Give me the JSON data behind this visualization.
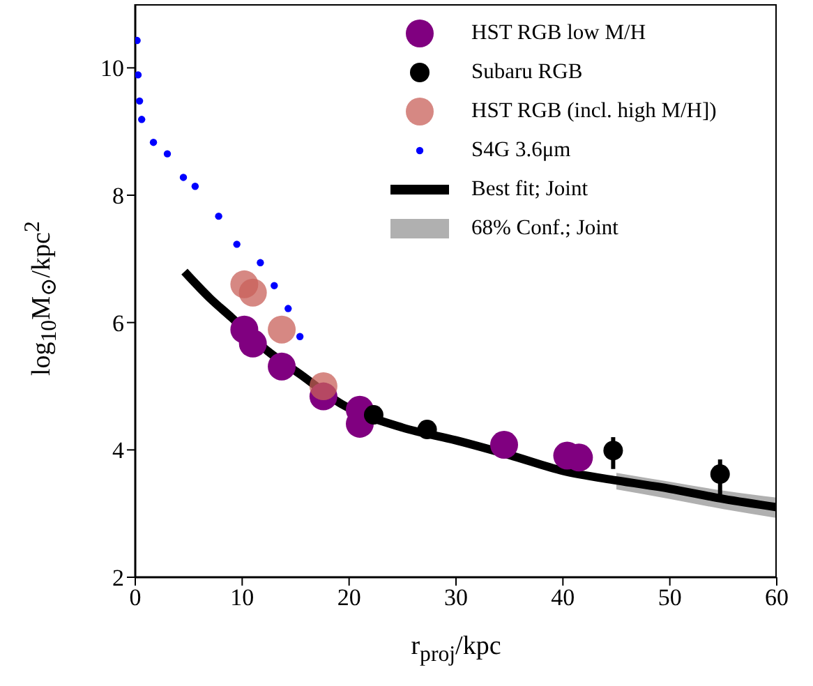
{
  "chart_data": {
    "type": "scatter",
    "xlabel": "r$_{proj}$/kpc",
    "ylabel": "log$_{10}$M$_{⊙}$/kpc$^{2}$",
    "xlim": [
      0,
      60
    ],
    "ylim": [
      2,
      11
    ],
    "xticks": [
      0,
      10,
      20,
      30,
      40,
      50,
      60
    ],
    "yticks": [
      2,
      4,
      6,
      8,
      10
    ],
    "legend": "top right",
    "marker": "circle",
    "series": [
      {
        "name": "HST RGB low M/H",
        "color": "#800080",
        "x": [
          10.2,
          11.0,
          13.7,
          17.6,
          21.0,
          21.0,
          34.5,
          40.4,
          41.5
        ],
        "values": [
          5.89,
          5.67,
          5.31,
          4.84,
          4.63,
          4.41,
          4.08,
          3.91,
          3.88
        ]
      },
      {
        "name": "Subaru RGB",
        "color": "#000000",
        "x": [
          22.3,
          27.3,
          44.7,
          54.7
        ],
        "values": [
          4.55,
          4.32,
          3.99,
          3.62
        ],
        "errors": [
          null,
          null,
          [
            3.7,
            4.2
          ],
          [
            3.3,
            3.85
          ]
        ]
      },
      {
        "name": "HST RGB (incl. high M/H])",
        "color": "#c8605a",
        "x": [
          10.2,
          11.0,
          13.7,
          17.6
        ],
        "values": [
          6.6,
          6.47,
          5.89,
          5.0
        ]
      },
      {
        "name": "S4G 3.6μm",
        "color": "#0000ff",
        "x": [
          0.17,
          0.26,
          0.4,
          0.6,
          1.7,
          3.0,
          4.5,
          5.6,
          7.8,
          9.5,
          11.7,
          13.0,
          14.3,
          15.4
        ],
        "values": [
          10.43,
          9.89,
          9.48,
          9.19,
          8.83,
          8.65,
          8.28,
          8.14,
          7.67,
          7.23,
          6.94,
          6.58,
          6.22,
          5.78
        ]
      },
      {
        "name": "Best fit; Joint",
        "type": "line",
        "color": "#000000",
        "marker": "none",
        "x": [
          4.6,
          7,
          9,
          12.4,
          15.5,
          19.3,
          25,
          30,
          35,
          40,
          45,
          50,
          55,
          60
        ],
        "values": [
          6.8,
          6.38,
          6.08,
          5.55,
          5.18,
          4.72,
          4.35,
          4.15,
          3.92,
          3.67,
          3.52,
          3.39,
          3.23,
          3.1
        ],
        "lower": [
          null,
          null,
          null,
          null,
          null,
          null,
          null,
          null,
          null,
          null,
          3.38,
          3.23,
          3.07,
          2.93
        ],
        "upper": [
          null,
          null,
          null,
          null,
          null,
          null,
          null,
          null,
          null,
          null,
          3.64,
          3.5,
          3.36,
          3.25
        ]
      }
    ],
    "annotations": [
      "68% Conf.; Joint"
    ]
  }
}
